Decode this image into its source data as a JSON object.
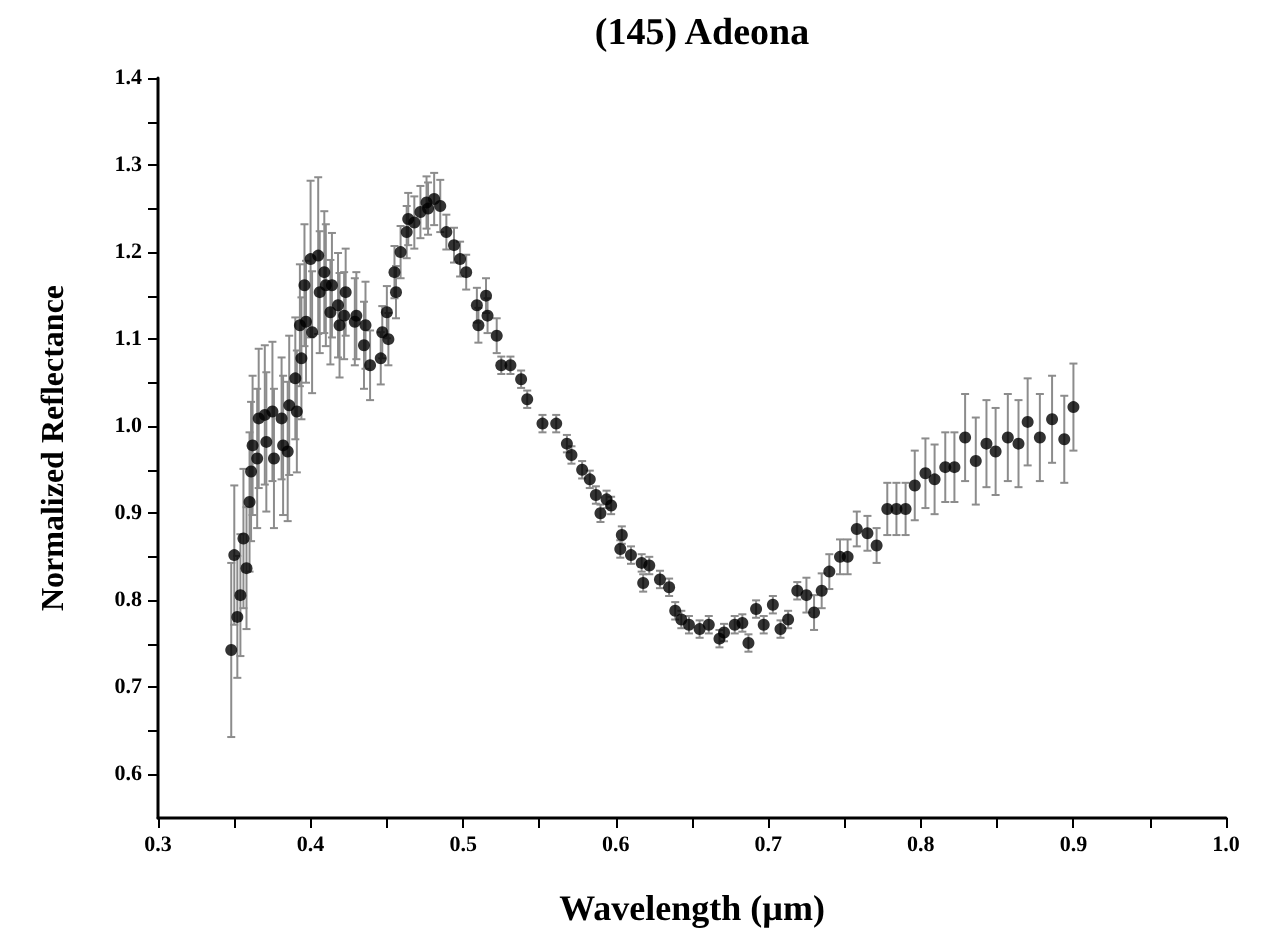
{
  "chart_data": {
    "type": "scatter",
    "title": "(145) Adeona",
    "xlabel": "Wavelength (µm)",
    "ylabel": "Normalized Reflectance",
    "marker": "circle",
    "grid": false,
    "xlim": [
      0.3,
      1.0
    ],
    "xticks": [
      0.3,
      {
        "value": 0.35,
        "label": null
      },
      0.4,
      {
        "value": 0.45,
        "label": null
      },
      0.5,
      {
        "value": 0.55,
        "label": null
      },
      0.6,
      {
        "value": 0.65,
        "label": null
      },
      0.7,
      {
        "value": 0.75,
        "label": null
      },
      0.8,
      {
        "value": 0.85,
        "label": null
      },
      0.9,
      {
        "value": 0.95,
        "label": null
      },
      {
        "value": 1.0,
        "label": "1.0"
      }
    ],
    "ylim": [
      0.55,
      1.4
    ],
    "yticks": [
      0.6,
      {
        "value": 0.65,
        "label": null
      },
      0.7,
      {
        "value": 0.75,
        "label": null
      },
      0.8,
      {
        "value": 0.85,
        "label": null
      },
      0.9,
      {
        "value": 0.95,
        "label": null
      },
      {
        "value": 1.0,
        "label": "1.0"
      },
      {
        "value": 1.05,
        "label": null
      },
      1.1,
      {
        "value": 1.15,
        "label": null
      },
      1.2,
      {
        "value": 1.25,
        "label": null
      },
      1.3,
      {
        "value": 1.35,
        "label": null
      },
      1.4
    ],
    "series": [
      {
        "color": "#000000",
        "x": [
          0.348,
          0.35,
          0.352,
          0.354,
          0.356,
          0.358,
          0.36,
          0.361,
          0.362,
          0.365,
          0.366,
          0.37,
          0.371,
          0.375,
          0.376,
          0.381,
          0.382,
          0.385,
          0.386,
          0.39,
          0.391,
          0.393,
          0.394,
          0.396,
          0.397,
          0.4,
          0.401,
          0.405,
          0.406,
          0.409,
          0.41,
          0.413,
          0.414,
          0.418,
          0.419,
          0.422,
          0.423,
          0.429,
          0.43,
          0.435,
          0.436,
          0.439,
          0.446,
          0.447,
          0.45,
          0.451,
          0.455,
          0.456,
          0.459,
          0.463,
          0.464,
          0.468,
          0.472,
          0.476,
          0.477,
          0.481,
          0.485,
          0.489,
          0.494,
          0.498,
          0.502,
          0.509,
          0.51,
          0.515,
          0.516,
          0.522,
          0.525,
          0.531,
          0.538,
          0.542,
          0.552,
          0.561,
          0.568,
          0.571,
          0.578,
          0.583,
          0.587,
          0.59,
          0.594,
          0.597,
          0.603,
          0.604,
          0.61,
          0.617,
          0.618,
          0.622,
          0.629,
          0.635,
          0.639,
          0.643,
          0.648,
          0.655,
          0.661,
          0.668,
          0.671,
          0.678,
          0.683,
          0.687,
          0.692,
          0.697,
          0.703,
          0.708,
          0.713,
          0.719,
          0.725,
          0.73,
          0.735,
          0.74,
          0.747,
          0.752,
          0.758,
          0.765,
          0.771,
          0.778,
          0.784,
          0.79,
          0.796,
          0.803,
          0.809,
          0.816,
          0.822,
          0.829,
          0.836,
          0.843,
          0.849,
          0.857,
          0.864,
          0.87,
          0.878,
          0.886,
          0.894,
          0.9
        ],
        "values": [
          0.743,
          0.852,
          0.781,
          0.806,
          0.871,
          0.837,
          0.913,
          0.948,
          0.978,
          0.963,
          1.009,
          1.013,
          0.982,
          1.017,
          0.963,
          1.009,
          0.978,
          0.971,
          1.024,
          1.055,
          1.017,
          1.116,
          1.078,
          1.162,
          1.12,
          1.192,
          1.108,
          1.196,
          1.154,
          1.177,
          1.162,
          1.131,
          1.162,
          1.139,
          1.116,
          1.127,
          1.154,
          1.12,
          1.127,
          1.093,
          1.116,
          1.07,
          1.078,
          1.108,
          1.131,
          1.1,
          1.177,
          1.154,
          1.2,
          1.223,
          1.238,
          1.234,
          1.246,
          1.257,
          1.25,
          1.261,
          1.253,
          1.223,
          1.208,
          1.192,
          1.177,
          1.139,
          1.116,
          1.15,
          1.127,
          1.104,
          1.07,
          1.07,
          1.054,
          1.031,
          1.003,
          1.003,
          0.98,
          0.967,
          0.95,
          0.939,
          0.921,
          0.9,
          0.916,
          0.909,
          0.859,
          0.875,
          0.852,
          0.843,
          0.82,
          0.84,
          0.824,
          0.815,
          0.788,
          0.778,
          0.772,
          0.767,
          0.772,
          0.756,
          0.763,
          0.772,
          0.774,
          0.751,
          0.79,
          0.772,
          0.795,
          0.767,
          0.778,
          0.811,
          0.806,
          0.786,
          0.811,
          0.833,
          0.85,
          0.85,
          0.882,
          0.877,
          0.863,
          0.905,
          0.905,
          0.905,
          0.932,
          0.946,
          0.939,
          0.953,
          0.953,
          0.987,
          0.96,
          0.98,
          0.971,
          0.987,
          0.98,
          1.005,
          0.987,
          1.008,
          0.985,
          1.022
        ],
        "errors": [
          0.1,
          0.08,
          0.07,
          0.07,
          0.08,
          0.07,
          0.08,
          0.08,
          0.08,
          0.08,
          0.08,
          0.08,
          0.08,
          0.08,
          0.08,
          0.07,
          0.08,
          0.08,
          0.08,
          0.07,
          0.07,
          0.07,
          0.07,
          0.07,
          0.07,
          0.09,
          0.07,
          0.09,
          0.07,
          0.07,
          0.07,
          0.06,
          0.06,
          0.06,
          0.06,
          0.05,
          0.05,
          0.05,
          0.05,
          0.05,
          0.05,
          0.04,
          0.03,
          0.03,
          0.03,
          0.03,
          0.03,
          0.03,
          0.03,
          0.03,
          0.03,
          0.03,
          0.03,
          0.03,
          0.03,
          0.03,
          0.03,
          0.02,
          0.02,
          0.02,
          0.02,
          0.02,
          0.02,
          0.02,
          0.02,
          0.02,
          0.01,
          0.01,
          0.01,
          0.01,
          0.01,
          0.01,
          0.01,
          0.01,
          0.01,
          0.01,
          0.01,
          0.01,
          0.01,
          0.01,
          0.01,
          0.01,
          0.01,
          0.01,
          0.01,
          0.01,
          0.01,
          0.01,
          0.01,
          0.01,
          0.01,
          0.01,
          0.01,
          0.01,
          0.01,
          0.01,
          0.01,
          0.01,
          0.01,
          0.01,
          0.01,
          0.01,
          0.01,
          0.01,
          0.02,
          0.02,
          0.02,
          0.02,
          0.02,
          0.02,
          0.02,
          0.02,
          0.02,
          0.03,
          0.03,
          0.03,
          0.04,
          0.04,
          0.04,
          0.04,
          0.04,
          0.05,
          0.05,
          0.05,
          0.05,
          0.05,
          0.05,
          0.05,
          0.05,
          0.05,
          0.05,
          0.05
        ]
      }
    ]
  }
}
